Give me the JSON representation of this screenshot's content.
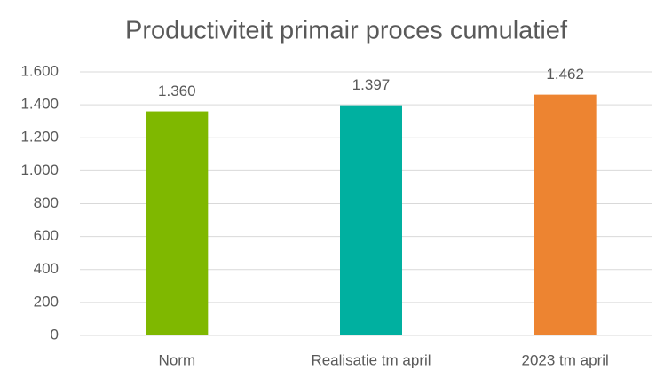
{
  "chart_data": {
    "type": "bar",
    "title": "Productiviteit primair proces cumulatief",
    "categories": [
      "Norm",
      "Realisatie tm april",
      "2023 tm april"
    ],
    "values": [
      1360,
      1397,
      1462
    ],
    "value_labels": [
      "1.360",
      "1.397",
      "1.462"
    ],
    "colors": [
      "#7fb800",
      "#00b0a0",
      "#ed8431"
    ],
    "ylim": [
      0,
      1600
    ],
    "yticks": [
      0,
      200,
      400,
      600,
      800,
      {
        "value": 1000,
        "label": "1.000"
      },
      {
        "value": 1200,
        "label": "1.200"
      },
      {
        "value": 1400,
        "label": "1.400"
      },
      {
        "value": 1600,
        "label": "1.600"
      }
    ],
    "grid": true
  }
}
